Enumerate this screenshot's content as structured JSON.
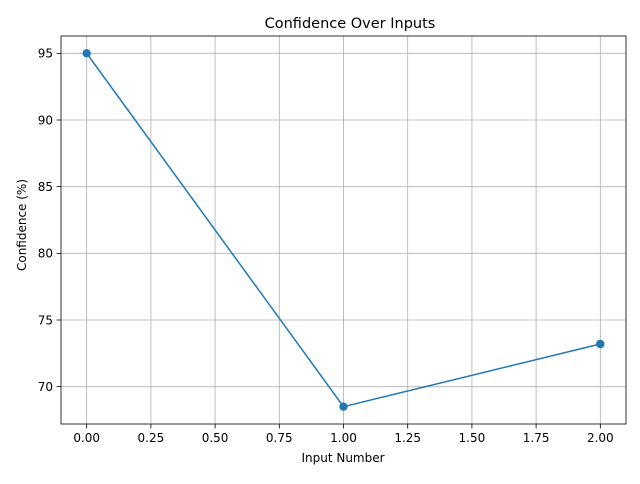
{
  "chart_data": {
    "type": "line",
    "title": "Confidence Over Inputs",
    "xlabel": "Input Number",
    "ylabel": "Confidence (%)",
    "x": [
      0,
      1,
      2
    ],
    "series": [
      {
        "values": [
          95.0,
          68.5,
          73.2
        ],
        "color": "#1f77b4",
        "marker": "circle"
      }
    ],
    "xlim": [
      -0.1,
      2.1
    ],
    "ylim": [
      67.2,
      96.3
    ],
    "xticks": [
      0.0,
      0.25,
      0.5,
      0.75,
      1.0,
      1.25,
      1.5,
      1.75,
      2.0
    ],
    "xtick_labels": [
      "0.00",
      "0.25",
      "0.50",
      "0.75",
      "1.00",
      "1.25",
      "1.50",
      "1.75",
      "2.00"
    ],
    "yticks": [
      70,
      75,
      80,
      85,
      90,
      95
    ],
    "ytick_labels": [
      "70",
      "75",
      "80",
      "85",
      "90",
      "95"
    ],
    "grid": true,
    "grid_color": "#b0b0b0",
    "axes_color": "#000000",
    "background": "#ffffff"
  }
}
